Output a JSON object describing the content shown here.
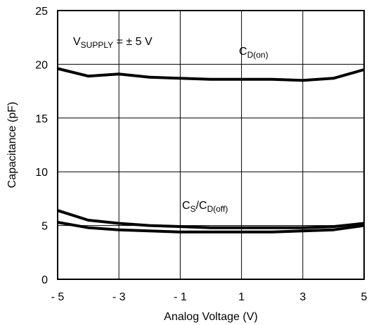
{
  "chart_data": {
    "type": "line",
    "title": "",
    "xlabel": "Analog Voltage (V)",
    "ylabel": "Capacitance (pF)",
    "xlim": [
      -5,
      5
    ],
    "ylim": [
      0,
      25
    ],
    "x_ticks": [
      -5,
      -3,
      -1,
      1,
      3,
      5
    ],
    "x_tick_labels": [
      "- 5",
      "- 3",
      "- 1",
      "1",
      "3",
      "5"
    ],
    "x_grid": [
      -5,
      -3,
      -1,
      1,
      3,
      5
    ],
    "y_ticks": [
      0,
      5,
      10,
      15,
      20,
      25
    ],
    "y_tick_labels": [
      "0",
      "5",
      "10",
      "15",
      "20",
      "25"
    ],
    "grid": true,
    "legend": "none",
    "annotations": {
      "supply": {
        "main": "V",
        "sub": "SUPPLY",
        "rest": " = ± 5 V"
      },
      "cd_on": {
        "main": "C",
        "sub": "D(on)"
      },
      "cs_cd_off": {
        "main1": "C",
        "sub1": "S",
        "mid": "/C",
        "sub2": "D(off)"
      }
    },
    "series": [
      {
        "x": [
          -5,
          -4,
          -3,
          -2,
          -1,
          0,
          1,
          2,
          3,
          4,
          5
        ],
        "y": [
          19.6,
          18.9,
          19.1,
          18.8,
          18.7,
          18.6,
          18.6,
          18.6,
          18.5,
          18.7,
          19.5
        ]
      },
      {
        "x": [
          -5,
          -4,
          -3,
          -2,
          -1,
          0,
          1,
          2,
          3,
          4,
          5
        ],
        "y": [
          6.4,
          5.5,
          5.2,
          5.0,
          4.9,
          4.8,
          4.8,
          4.8,
          4.8,
          4.9,
          5.2
        ]
      },
      {
        "x": [
          -5,
          -4,
          -3,
          -2,
          -1,
          0,
          1,
          2,
          3,
          4,
          5
        ],
        "y": [
          5.3,
          4.8,
          4.6,
          4.5,
          4.4,
          4.4,
          4.4,
          4.4,
          4.5,
          4.6,
          5.0
        ]
      }
    ]
  }
}
